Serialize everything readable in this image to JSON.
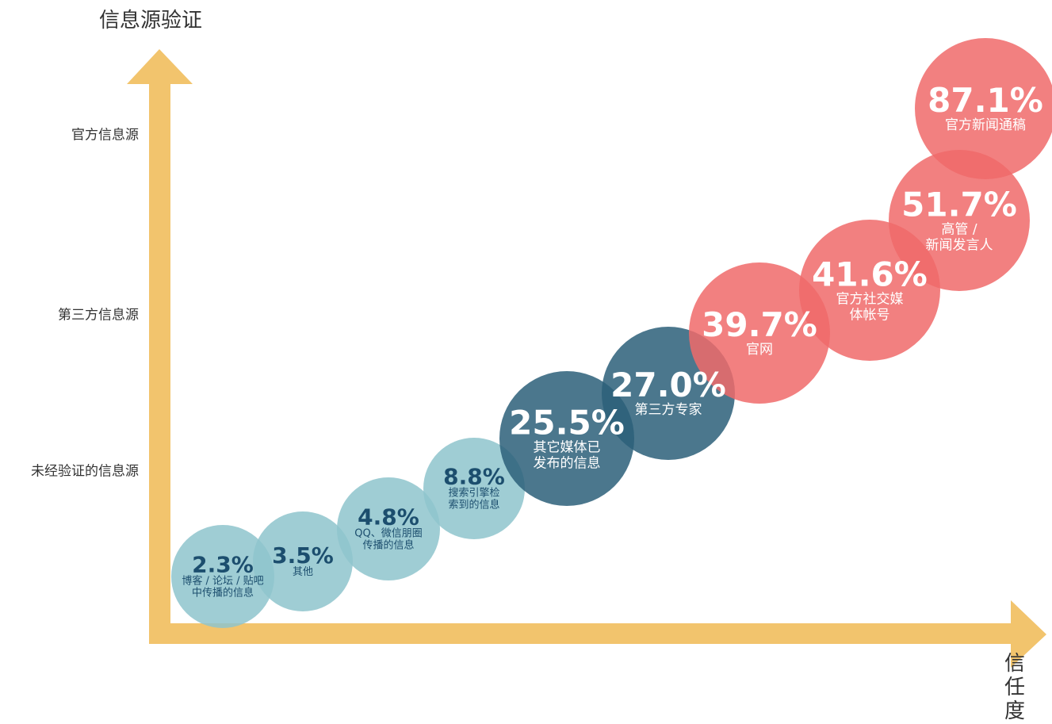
{
  "chart_data": {
    "type": "bubble",
    "y_label": "信息源验证",
    "x_label": "信任度",
    "y_levels": [
      "未经验证的信息源",
      "第三方信息源",
      "官方信息源"
    ],
    "categories": [
      "博客 / 论坛 / 贴吧\n中传播的信息",
      "其他",
      "QQ、微信朋圈\n传播的信息",
      "搜索引擎检\n索到的信息",
      "其它媒体已\n发布的信息",
      "第三方专家",
      "官网",
      "官方社交媒\n体帐号",
      "高管 /\n新闻发言人",
      "官方新闻通稿"
    ],
    "values": [
      2.3,
      3.5,
      4.8,
      8.8,
      25.5,
      27.0,
      39.7,
      41.6,
      51.7,
      87.1
    ],
    "value_labels": [
      "2.3%",
      "3.5%",
      "4.8%",
      "8.8%",
      "25.5%",
      "27.0%",
      "39.7%",
      "41.6%",
      "51.7%",
      "87.1%"
    ],
    "colors": [
      "#8ec4cd",
      "#8ec4cd",
      "#8ec4cd",
      "#8ec4cd",
      "#2b5f79",
      "#2b5f79",
      "#f06a6a",
      "#f06a6a",
      "#f06a6a",
      "#f06a6a"
    ],
    "axis_color": "#f2c46d"
  }
}
